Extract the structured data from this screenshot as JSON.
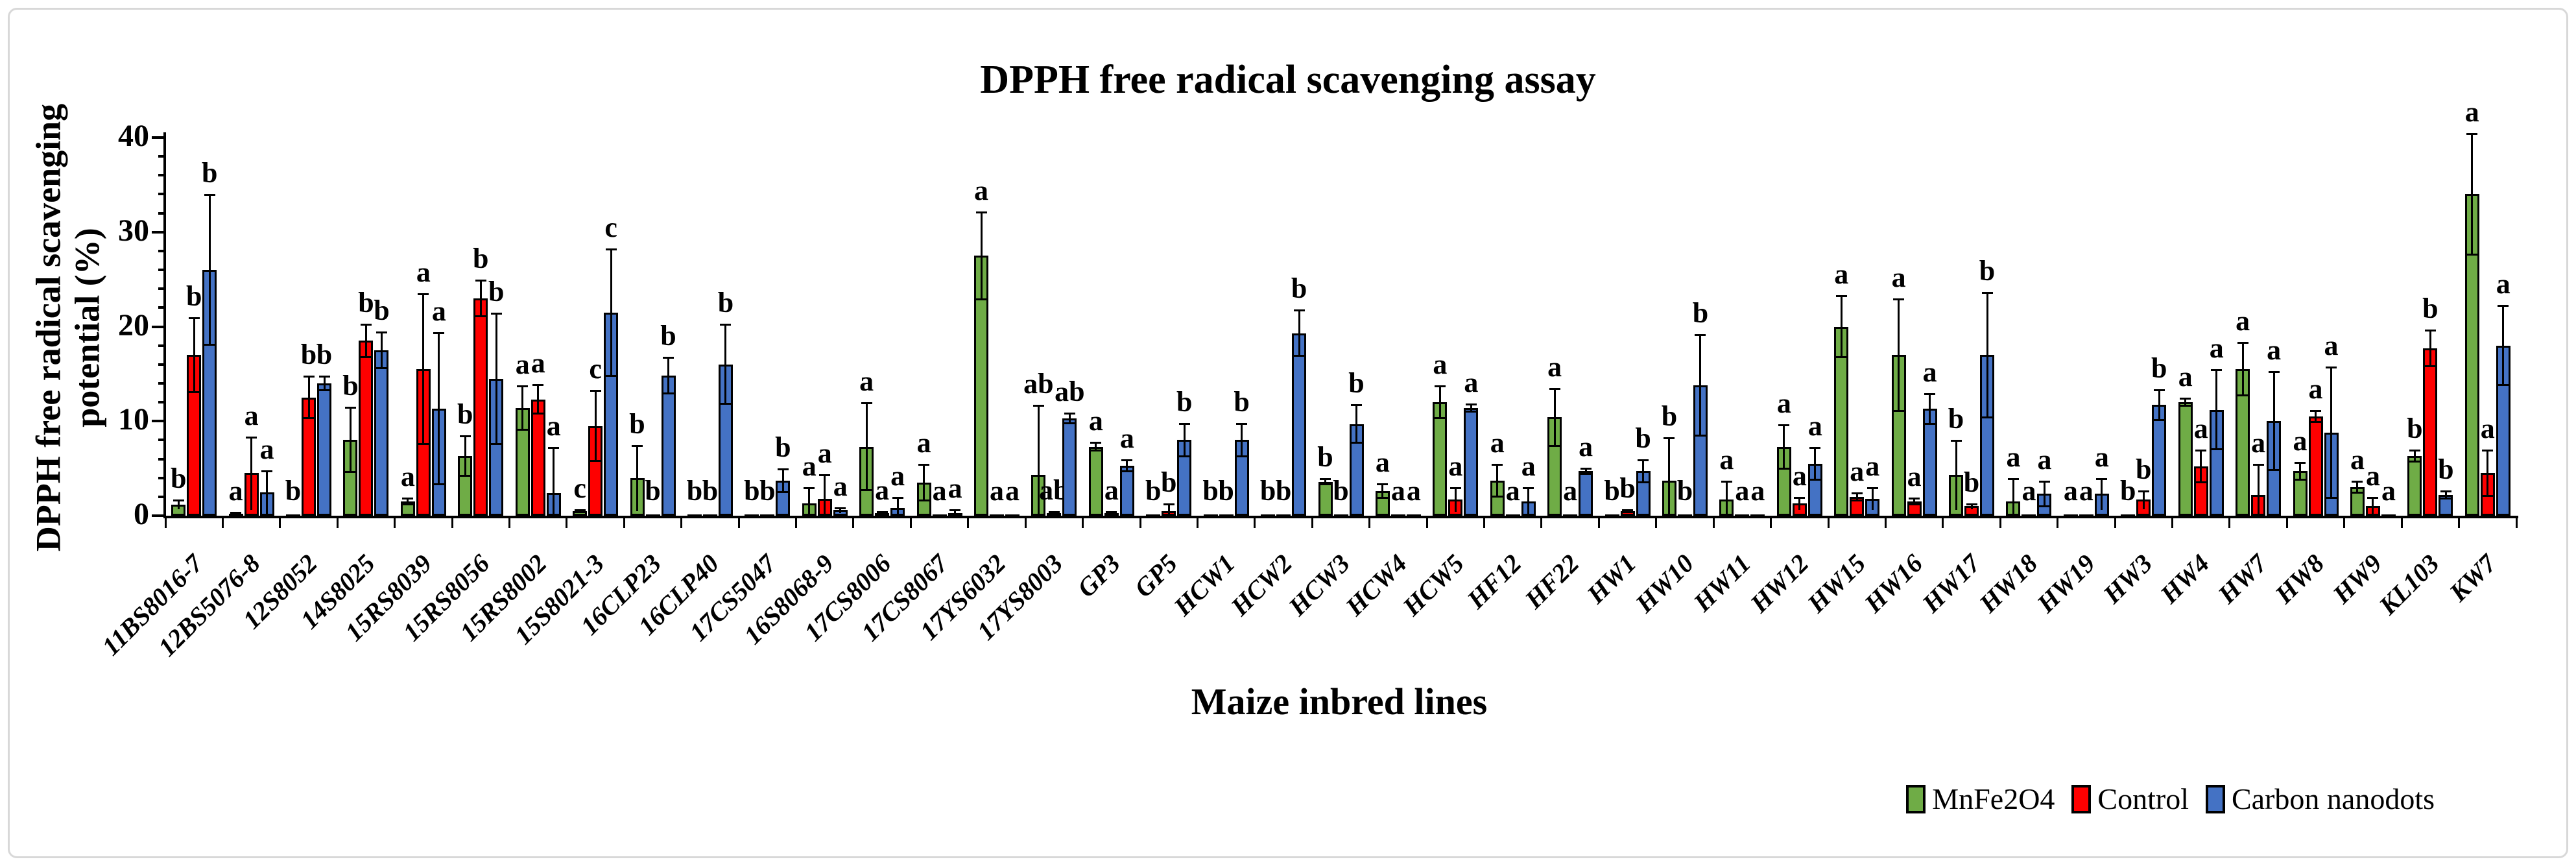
{
  "figure": {
    "title": "DPPH free radical scavenging assay",
    "y_axis_title_line1": "DPPH free radical scavenging",
    "y_axis_title_line2": "potential (%)",
    "x_axis_title": "Maize inbred lines"
  },
  "chart_data": {
    "type": "bar",
    "title": "DPPH free radical scavenging assay",
    "xlabel": "Maize inbred lines",
    "ylabel": "DPPH free radical scavenging potential (%)",
    "ylim": [
      0,
      40
    ],
    "y_major_ticks": [
      0,
      10,
      20,
      30,
      40
    ],
    "y_minor_tick_step": 2,
    "grid": false,
    "legend_position": "bottom-right",
    "error_bars": true,
    "categories": [
      "11BS8016-7",
      "12BS5076-8",
      "12S8052",
      "14S8025",
      "15RS8039",
      "15RS8056",
      "15RS8002",
      "15S8021-3",
      "16CLP23",
      "16CLP40",
      "17CS5047",
      "16S8068-9",
      "17CS8006",
      "17CS8067",
      "17YS6032",
      "17YS8003",
      "GP3",
      "GP5",
      "HCW1",
      "HCW2",
      "HCW3",
      "HCW4",
      "HCW5",
      "HF12",
      "HF22",
      "HW1",
      "HW10",
      "HW11",
      "HW12",
      "HW15",
      "HW16",
      "HW17",
      "HW18",
      "HW19",
      "HW3",
      "HW4",
      "HW7",
      "HW8",
      "HW9",
      "KL103",
      "KW7"
    ],
    "significance_letters": [
      "b",
      "a",
      "b",
      "b",
      "a",
      "b",
      "a",
      "c",
      "b",
      "b",
      "b",
      "a",
      "a",
      "a",
      "a",
      "ab",
      "a",
      "b",
      "b",
      "b",
      "b",
      "a",
      "a",
      "a",
      "a",
      "b",
      "b",
      "a",
      "a",
      "a",
      "a",
      "b",
      "a",
      "a",
      "b",
      "a",
      "a",
      "a",
      "a",
      "b",
      "a"
    ],
    "series": [
      {
        "name": "MnFe2O4",
        "color": "#6FAC46",
        "values": [
          1.2,
          0.2,
          0.1,
          8,
          1.5,
          6.3,
          11.4,
          0.5,
          4,
          0.1,
          0.1,
          1.3,
          7.3,
          3.5,
          27.5,
          4.3,
          7.3,
          0.1,
          0.1,
          0.1,
          3.6,
          2.6,
          12,
          3.7,
          10.4,
          0.1,
          3.7,
          1.7,
          7.3,
          20,
          17,
          4.3,
          1.5,
          0.1,
          0.1,
          12,
          15.5,
          4.7,
          3,
          6.3,
          34
        ],
        "errors": [
          0.5,
          0.2,
          0,
          3.5,
          0.4,
          2.2,
          2.4,
          0.2,
          3.5,
          0,
          0,
          1.7,
          4.7,
          2,
          4.7,
          7.4,
          0.5,
          0,
          0,
          0,
          0.4,
          0.8,
          1.8,
          1.8,
          3.1,
          0,
          4.6,
          2,
          2.4,
          3.3,
          6,
          3.7,
          2.5,
          0,
          0,
          0.5,
          2.9,
          1,
          0.7,
          0.7,
          6.5
        ]
      },
      {
        "name": "Control",
        "color": "#FE0000",
        "values": [
          17,
          4.5,
          12.5,
          18.5,
          15.5,
          23,
          12.3,
          9.5,
          0.1,
          0.1,
          0.1,
          1.8,
          0.3,
          0.1,
          0.1,
          0.3,
          0.3,
          0.5,
          0.1,
          0.1,
          0.1,
          0.1,
          1.7,
          0.1,
          0.1,
          0.5,
          0.1,
          0.1,
          1.3,
          2,
          1.5,
          1,
          0.1,
          0.1,
          1.7,
          5.2,
          2.2,
          10.5,
          1,
          17.7,
          4.5
        ],
        "errors": [
          4,
          3.9,
          2.3,
          1.8,
          8,
          2,
          1.6,
          3.8,
          0,
          0,
          0,
          2.6,
          0.2,
          0,
          0,
          0.2,
          0.2,
          0.8,
          0,
          0,
          0,
          0,
          1.3,
          0,
          0,
          0.2,
          0,
          0,
          0.7,
          0.5,
          0.4,
          0.3,
          0,
          0,
          1,
          1.8,
          3.3,
          0.7,
          1,
          2,
          2.5
        ]
      },
      {
        "name": "Carbon nanodots",
        "color": "#4472C4",
        "values": [
          26,
          2.5,
          14,
          17.5,
          11.3,
          14.5,
          2.4,
          21.5,
          14.8,
          16,
          3.7,
          0.6,
          0.8,
          0.3,
          0.1,
          10.3,
          5.3,
          8,
          8,
          19.3,
          9.7,
          0.1,
          11.4,
          1.5,
          4.7,
          4.7,
          13.8,
          0.1,
          5.5,
          1.8,
          11.3,
          17,
          2.3,
          2.3,
          11.7,
          11.2,
          10,
          8.8,
          0.1,
          2.2,
          18
        ],
        "errors": [
          8,
          2.3,
          0.8,
          2,
          8.1,
          7,
          4.9,
          6.8,
          2,
          4.3,
          1.3,
          0.3,
          1.2,
          0.4,
          0,
          0.6,
          0.7,
          1.8,
          1.8,
          2.5,
          2.1,
          0,
          0.5,
          1.5,
          0.4,
          1.3,
          5.4,
          0,
          1.8,
          1.2,
          1.7,
          6.7,
          1.4,
          1.7,
          1.7,
          4.3,
          5.3,
          7,
          0,
          0.5,
          4.3
        ]
      }
    ]
  }
}
